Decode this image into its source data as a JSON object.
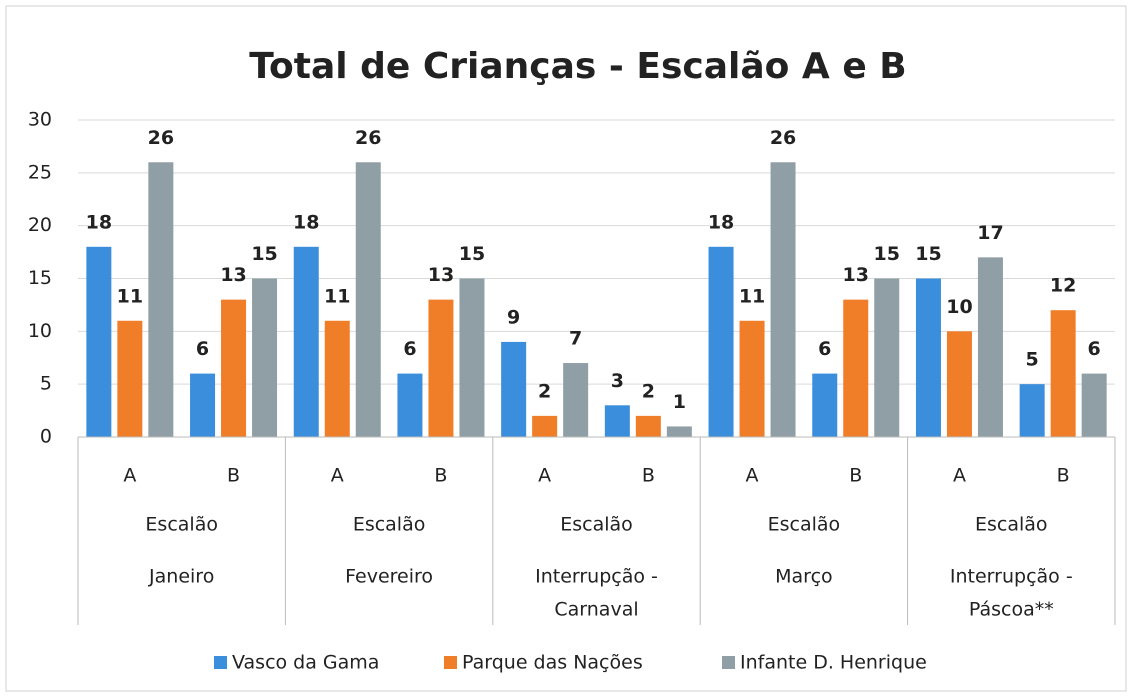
{
  "chart_data": {
    "type": "bar",
    "title": "Total de Crianças - Escalão A e B",
    "categories": [
      "A",
      "B",
      "A",
      "B",
      "A",
      "B",
      "A",
      "B",
      "A",
      "B"
    ],
    "groups": [
      [
        "Escalão",
        "Janeiro"
      ],
      [
        "Escalão",
        "Fevereiro"
      ],
      [
        "Escalão",
        "Interrupção -",
        "Carnaval"
      ],
      [
        "Escalão",
        "Março"
      ],
      [
        "Escalão",
        "Interrupção -",
        "Páscoa**"
      ]
    ],
    "series": [
      {
        "name": "Vasco da Gama",
        "color": "#3a8edb",
        "values": [
          18,
          6,
          18,
          6,
          9,
          3,
          18,
          6,
          15,
          5
        ]
      },
      {
        "name": "Parque das Nações",
        "color": "#f07d28",
        "values": [
          11,
          13,
          11,
          13,
          2,
          2,
          11,
          13,
          10,
          12
        ]
      },
      {
        "name": "Infante D. Henrique",
        "color": "#909fa5",
        "values": [
          26,
          15,
          26,
          15,
          7,
          1,
          26,
          15,
          17,
          6
        ]
      }
    ],
    "ylim": [
      0,
      30
    ],
    "yticks": [
      0,
      5,
      10,
      15,
      20,
      25,
      30
    ],
    "grid": true,
    "legend": "bottom"
  }
}
